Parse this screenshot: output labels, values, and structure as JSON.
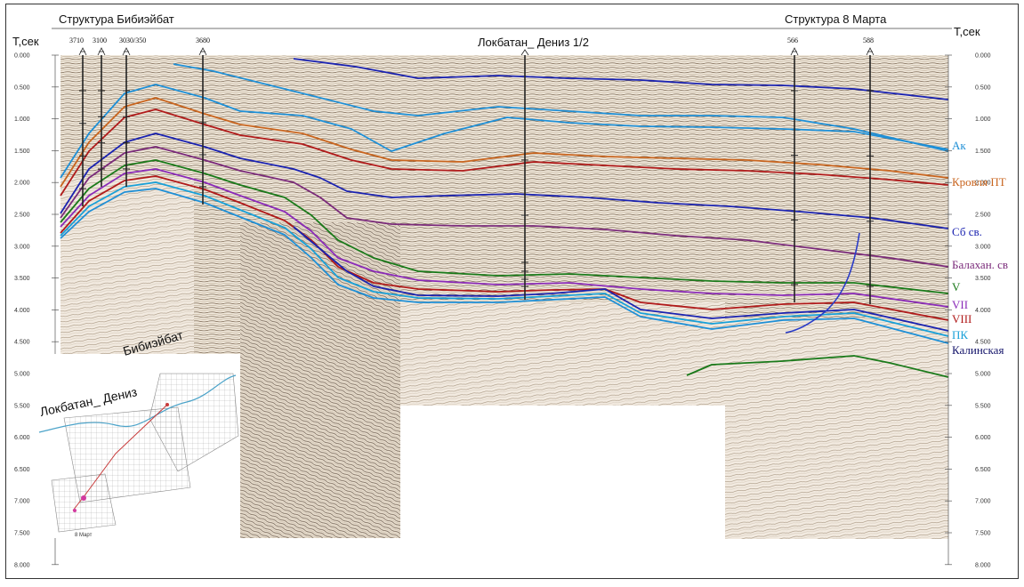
{
  "headers": {
    "left_structure": "Структура Бибиэйбат",
    "right_structure": "Структура 8 Марта",
    "center_profile": "Локбатан_ Дениз 1/2"
  },
  "axis": {
    "unit_left": "T,сек",
    "unit_right": "T,сек",
    "ticks": [
      "0.000",
      "0.500",
      "1.000",
      "1.500",
      "2.000",
      "2.500",
      "3.000",
      "3.500",
      "4.000",
      "4.500",
      "5.000",
      "5.500",
      "6.000",
      "6.500",
      "7.000",
      "7.500",
      "8.000"
    ]
  },
  "wells": [
    {
      "label": "3710"
    },
    {
      "label": "3100"
    },
    {
      "label": "3030/350"
    },
    {
      "label": "3680"
    },
    {
      "label": "566"
    },
    {
      "label": "588"
    }
  ],
  "horizons": [
    {
      "name": "Ак",
      "color": "#1e8fd6"
    },
    {
      "name": "Кровля ПТ",
      "color": "#c8641e"
    },
    {
      "name": "Сб св.",
      "color": "#1a22b0"
    },
    {
      "name": "Балахан. св",
      "color": "#7a2a7a"
    },
    {
      "name": "V",
      "color": "#1a7a1a"
    },
    {
      "name": "VII",
      "color": "#8a2ab8"
    },
    {
      "name": "VIII",
      "color": "#b01a1a"
    },
    {
      "name": "ПК",
      "color": "#18a0d8"
    },
    {
      "name": "Калинская",
      "color": "#14146a"
    }
  ],
  "inset_map": {
    "label_top": "Бибиэйбат",
    "label_left": "Локбатан_ Дениз",
    "label_bottom": "8 Март"
  }
}
